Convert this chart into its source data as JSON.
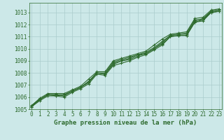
{
  "title": "Graphe pression niveau de la mer (hPa)",
  "xlabel_hours": [
    0,
    1,
    2,
    3,
    4,
    5,
    6,
    7,
    8,
    9,
    10,
    11,
    12,
    13,
    14,
    15,
    16,
    17,
    18,
    19,
    20,
    21,
    22,
    23
  ],
  "series": {
    "mean": [
      1005.3,
      1005.8,
      1006.2,
      1006.2,
      1006.2,
      1006.5,
      1006.8,
      1007.3,
      1008.0,
      1007.9,
      1008.8,
      1009.0,
      1009.2,
      1009.5,
      1009.6,
      1010.0,
      1010.5,
      1011.1,
      1011.2,
      1011.2,
      1012.3,
      1012.5,
      1013.1,
      1013.2
    ],
    "max": [
      1005.3,
      1005.9,
      1006.3,
      1006.3,
      1006.3,
      1006.6,
      1006.9,
      1007.5,
      1008.1,
      1008.1,
      1009.0,
      1009.2,
      1009.4,
      1009.6,
      1009.8,
      1010.3,
      1010.8,
      1011.2,
      1011.3,
      1011.4,
      1012.5,
      1012.6,
      1013.2,
      1013.3
    ],
    "min": [
      1005.2,
      1005.7,
      1006.1,
      1006.1,
      1006.0,
      1006.4,
      1006.7,
      1007.1,
      1007.9,
      1007.8,
      1008.6,
      1008.8,
      1009.0,
      1009.3,
      1009.5,
      1009.9,
      1010.3,
      1011.0,
      1011.1,
      1011.1,
      1012.2,
      1012.3,
      1013.0,
      1013.1
    ],
    "extra1": [
      1005.3,
      1005.8,
      1006.2,
      1006.1,
      1006.2,
      1006.5,
      1006.8,
      1007.2,
      1008.0,
      1008.0,
      1008.9,
      1009.1,
      1009.3,
      1009.5,
      1009.7,
      1010.1,
      1010.6,
      1011.1,
      1011.2,
      1011.3,
      1012.4,
      1012.4,
      1013.1,
      1013.2
    ],
    "extra2": [
      1005.2,
      1005.8,
      1006.2,
      1006.2,
      1006.1,
      1006.5,
      1006.8,
      1007.3,
      1008.0,
      1007.9,
      1008.7,
      1009.0,
      1009.1,
      1009.4,
      1009.6,
      1010.0,
      1010.4,
      1011.0,
      1011.1,
      1011.1,
      1012.2,
      1012.4,
      1013.0,
      1013.1
    ]
  },
  "line_color": "#2d6a2d",
  "marker": "+",
  "marker_size": 3,
  "marker_lw": 0.8,
  "line_width": 0.8,
  "bg_color": "#cce8e8",
  "grid_color": "#aacccc",
  "ylim": [
    1005,
    1013.8
  ],
  "yticks": [
    1005,
    1006,
    1007,
    1008,
    1009,
    1010,
    1011,
    1012,
    1013
  ],
  "xlim": [
    -0.3,
    23.3
  ],
  "title_fontsize": 6.5,
  "tick_fontsize": 5.5
}
